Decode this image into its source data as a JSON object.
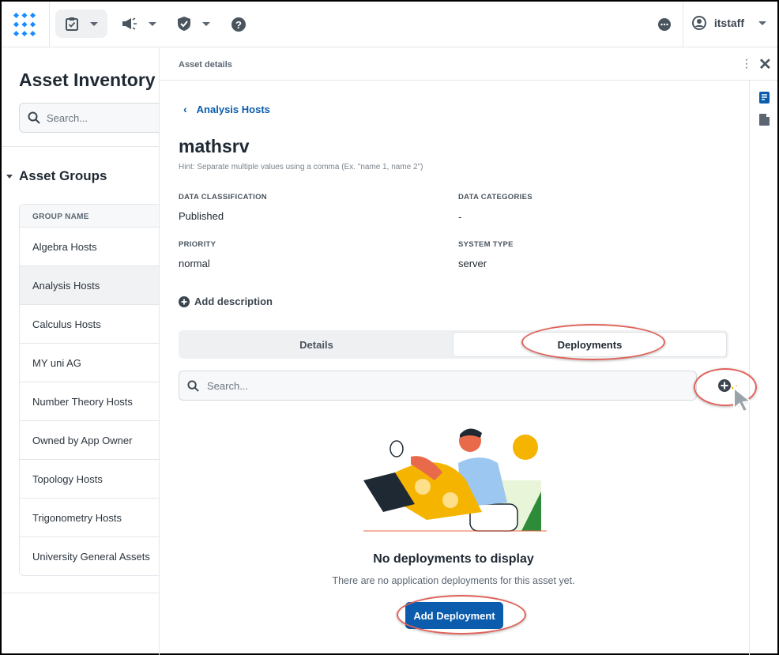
{
  "topbar": {
    "user": "itstaff",
    "icons": [
      "logo-icon",
      "clipboard-check-icon",
      "megaphone-icon",
      "shield-check-icon",
      "help-icon",
      "chat-icon",
      "user-icon"
    ]
  },
  "left": {
    "title": "Asset Inventory",
    "search_placeholder": "Search...",
    "groups_title": "Asset Groups",
    "column": "GROUP NAME",
    "groups": [
      "Algebra Hosts",
      "Analysis Hosts",
      "Calculus Hosts",
      "MY uni AG",
      "Number Theory Hosts",
      "Owned by App Owner",
      "Topology Hosts",
      "Trigonometry Hosts",
      "University General Assets"
    ],
    "selected": "Analysis Hosts"
  },
  "detail": {
    "header": "Asset details",
    "back": "Analysis Hosts",
    "name": "mathsrv",
    "hint": "Hint: Separate multiple values using a comma (Ex. \"name 1, name 2\")",
    "fields": [
      {
        "label": "DATA CLASSIFICATION",
        "value": "Published"
      },
      {
        "label": "DATA CATEGORIES",
        "value": "-"
      },
      {
        "label": "PRIORITY",
        "value": "normal"
      },
      {
        "label": "SYSTEM TYPE",
        "value": "server"
      }
    ],
    "add_description": "Add description",
    "tabs": [
      "Details",
      "Deployments"
    ],
    "active_tab": "Deployments",
    "search_placeholder": "Search...",
    "empty_title": "No deployments to display",
    "empty_sub": "There are no application deployments for this asset yet.",
    "add_button": "Add Deployment"
  },
  "colors": {
    "accent": "#0b5cad",
    "highlight": "#e0625a",
    "logo": "#1a8cff"
  }
}
